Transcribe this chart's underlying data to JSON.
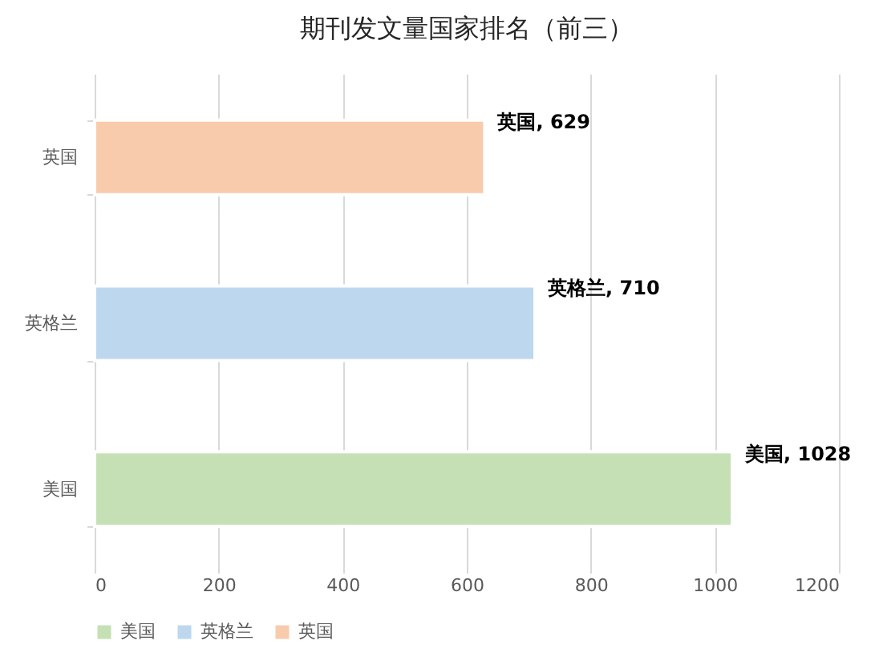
{
  "chart_data": {
    "type": "bar",
    "orientation": "horizontal",
    "title": "期刊发文量国家排名（前三）",
    "categories": [
      "英国",
      "英格兰",
      "美国"
    ],
    "series": [
      {
        "name": "美国",
        "color": "#c5e0b4",
        "values": [
          null,
          null,
          1028
        ],
        "value_labels": [
          null,
          null,
          "美国, 1028"
        ]
      },
      {
        "name": "英格兰",
        "color": "#bdd7ee",
        "values": [
          null,
          710,
          null
        ],
        "value_labels": [
          null,
          "英格兰, 710",
          null
        ]
      },
      {
        "name": "英国",
        "color": "#f8cbad",
        "values": [
          629,
          null,
          null
        ],
        "value_labels": [
          "英国, 629",
          null,
          null
        ]
      }
    ],
    "xlim": [
      0,
      1200
    ],
    "xticks": [
      0,
      200,
      400,
      600,
      800,
      1000,
      1200
    ],
    "grid": "x",
    "legend": "bottom"
  }
}
